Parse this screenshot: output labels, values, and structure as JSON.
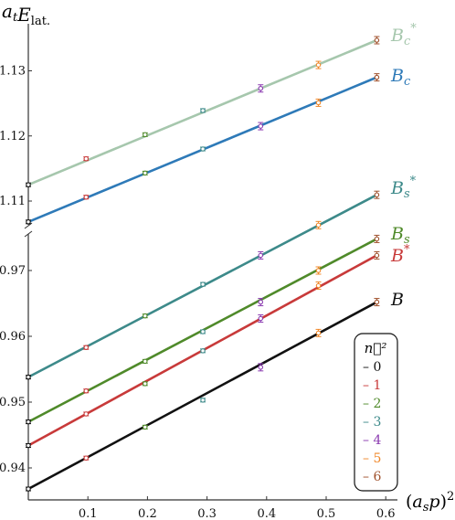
{
  "chart_data": {
    "type": "line",
    "ylabel": "a_t E_lat.",
    "xlabel": "(a_s p)^2",
    "xlim": [
      0,
      0.62
    ],
    "x_ticks": [
      "0.1",
      "0.2",
      "0.3",
      "0.4",
      "0.5",
      "0.6"
    ],
    "y_ticks_upper": [
      "1.11",
      "1.12",
      "1.13"
    ],
    "y_ticks_lower": [
      "0.94",
      "0.95",
      "0.96",
      "0.97"
    ],
    "axis_break": "between 0.975 and 1.105",
    "grid": false,
    "series": [
      {
        "name": "B_c*",
        "color": "#a6c7ad",
        "x": [
          0,
          0.097,
          0.196,
          0.293,
          0.39,
          0.487,
          0.585
        ],
        "y": [
          1.1125,
          1.1165,
          1.1202,
          1.1239,
          1.1273,
          1.1309,
          1.1347
        ]
      },
      {
        "name": "B_c",
        "color": "#2e7ab8",
        "x": [
          0,
          0.097,
          0.196,
          0.293,
          0.39,
          0.487,
          0.585
        ],
        "y": [
          1.1068,
          1.1106,
          1.1143,
          1.118,
          1.1215,
          1.1251,
          1.129
        ]
      },
      {
        "name": "B_s*",
        "color": "#3d8a8a",
        "x": [
          0,
          0.097,
          0.196,
          0.293,
          0.39,
          0.487,
          0.585
        ],
        "y": [
          0.9538,
          0.9583,
          0.9631,
          0.9679,
          0.9723,
          0.9769,
          0.9815
        ]
      },
      {
        "name": "B_s",
        "color": "#4f8a2a",
        "x": [
          0,
          0.097,
          0.196,
          0.293,
          0.39,
          0.487,
          0.585
        ],
        "y": [
          0.947,
          0.9517,
          0.9562,
          0.9607,
          0.9652,
          0.97,
          0.9748
        ]
      },
      {
        "name": "B*",
        "color": "#c83a3a",
        "x": [
          0,
          0.097,
          0.196,
          0.293,
          0.39,
          0.487,
          0.585
        ],
        "y": [
          0.9434,
          0.9482,
          0.9528,
          0.9578,
          0.9627,
          0.9677,
          0.9723
        ]
      },
      {
        "name": "B",
        "color": "#111111",
        "x": [
          0,
          0.097,
          0.196,
          0.293,
          0.39,
          0.487,
          0.585
        ],
        "y": [
          0.9368,
          0.9415,
          0.9462,
          0.9503,
          0.9553,
          0.9605,
          0.9652
        ]
      }
    ],
    "legend": {
      "title": "n⃗²",
      "entries": [
        {
          "label": "– 0",
          "color": "#111111"
        },
        {
          "label": "– 1",
          "color": "#c83a3a"
        },
        {
          "label": "– 2",
          "color": "#4f8a2a"
        },
        {
          "label": "– 3",
          "color": "#3d8a8a"
        },
        {
          "label": "– 4",
          "color": "#8a3ab0"
        },
        {
          "label": "– 5",
          "color": "#f0882a"
        },
        {
          "label": "– 6",
          "color": "#a0522d"
        }
      ],
      "placement": "bottom-right"
    },
    "point_colors_by_n2": [
      "#111111",
      "#c83a3a",
      "#4f8a2a",
      "#3d8a8a",
      "#8a3ab0",
      "#f0882a",
      "#a0522d"
    ]
  }
}
